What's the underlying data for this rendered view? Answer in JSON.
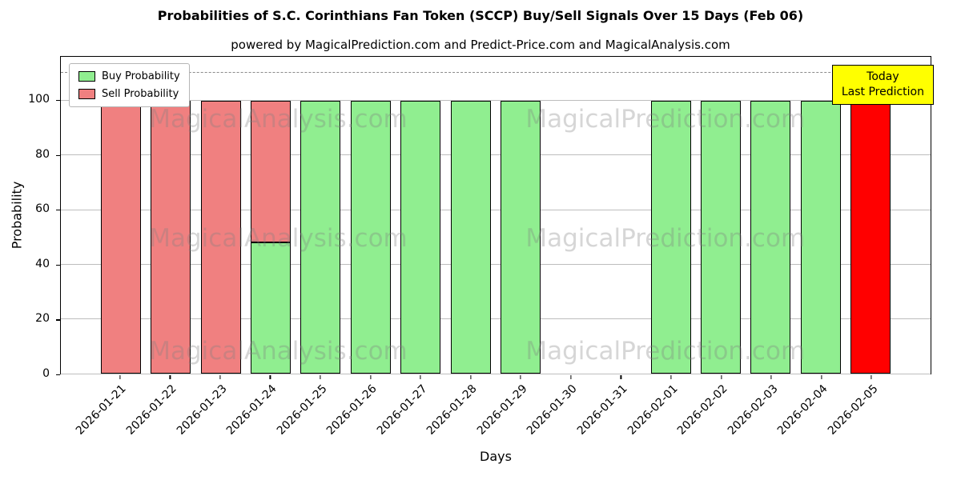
{
  "title": "Probabilities of S.C. Corinthians Fan Token (SCCP) Buy/Sell Signals Over 15 Days (Feb 06)",
  "subtitle": "powered by MagicalPrediction.com and Predict-Price.com and MagicalAnalysis.com",
  "watermarks": {
    "left": "MagicalAnalysis.com",
    "right": "MagicalPrediction.com"
  },
  "annotation": {
    "line1": "Today",
    "line2": "Last Prediction",
    "bg_color": "#ffff00"
  },
  "chart_data": {
    "type": "bar",
    "stacked": true,
    "title": "Probabilities of S.C. Corinthians Fan Token (SCCP) Buy/Sell Signals Over 15 Days (Feb 06)",
    "xlabel": "Days",
    "ylabel": "Probability",
    "ylim": [
      0,
      116
    ],
    "yticks": [
      0,
      20,
      40,
      60,
      80,
      100
    ],
    "dashed_line_y": 110,
    "grid": "horizontal",
    "legend_position": "upper-left",
    "bar_edge_color": "#000000",
    "categories": [
      "2026-01-21",
      "2026-01-22",
      "2026-01-23",
      "2026-01-24",
      "2026-01-25",
      "2026-01-26",
      "2026-01-27",
      "2026-01-28",
      "2026-01-29",
      "2026-01-30",
      "2026-01-31",
      "2026-02-01",
      "2026-02-02",
      "2026-02-03",
      "2026-02-04",
      "2026-02-05"
    ],
    "series": [
      {
        "name": "Buy Probability",
        "color": "#90ee90",
        "in_legend": true,
        "values": [
          0,
          0,
          0,
          48,
          100,
          100,
          100,
          100,
          100,
          0,
          0,
          100,
          100,
          100,
          100,
          0
        ]
      },
      {
        "name": "Sell Probability",
        "color": "#f08080",
        "in_legend": true,
        "values": [
          100,
          100,
          100,
          52,
          0,
          0,
          0,
          0,
          0,
          0,
          0,
          0,
          0,
          0,
          0,
          0
        ]
      },
      {
        "name": "Today Last Prediction",
        "color": "#ff0000",
        "in_legend": false,
        "values": [
          0,
          0,
          0,
          0,
          0,
          0,
          0,
          0,
          0,
          0,
          0,
          0,
          0,
          0,
          0,
          100
        ]
      }
    ]
  }
}
